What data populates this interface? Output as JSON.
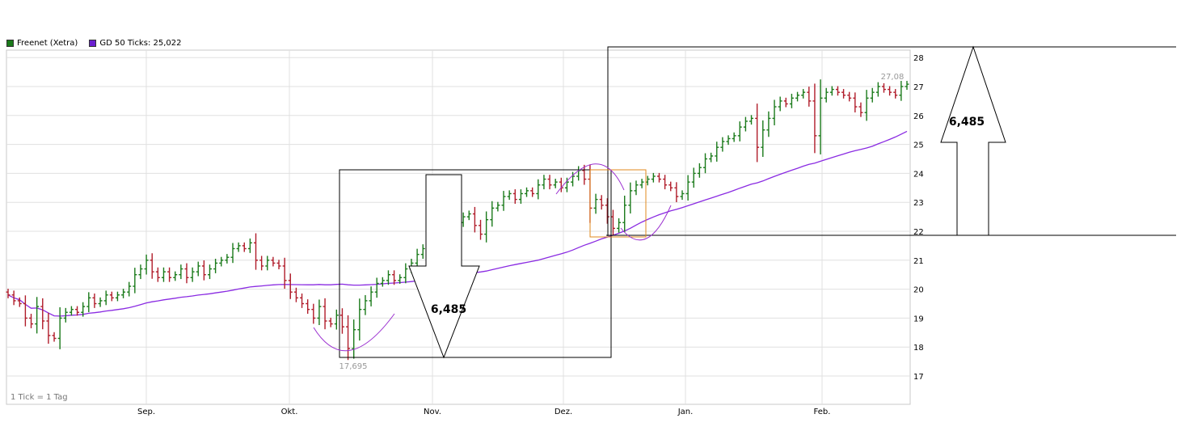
{
  "legend": {
    "series1": "Freenet (Xetra)",
    "series2": "GD 50 Ticks: 25,022"
  },
  "footnote": "1 Tick = 1 Tag",
  "annotations": {
    "low_label": "17,695",
    "high_label": "27,08",
    "down_arrow_label": "6,485",
    "up_arrow_label": "6,485"
  },
  "colors": {
    "up_bar": "#1a7a1a",
    "down_bar": "#b01c2a",
    "moving_average": "#8a2be2",
    "grid": "#e0e0e0",
    "annotation_box": "#000000",
    "highlight_box": "#e08a1e",
    "curve": "#9b30d0"
  },
  "chart_data": {
    "type": "ohlc",
    "title": "",
    "x_tick_labels": [
      "Sep.",
      "Okt.",
      "Nov.",
      "Dez.",
      "Jan.",
      "Feb."
    ],
    "y_tick_labels": [
      "17",
      "18",
      "19",
      "20",
      "21",
      "22",
      "23",
      "24",
      "25",
      "26",
      "27",
      "28"
    ],
    "ylim": [
      16,
      29
    ],
    "grid": true,
    "legend_position": "top-left",
    "series": [
      {
        "name": "Freenet (Xetra)",
        "kind": "ohlc"
      },
      {
        "name": "GD 50 Ticks: 25,022",
        "kind": "line"
      }
    ],
    "closes": [
      19.8,
      19.6,
      19.5,
      19.0,
      18.8,
      19.4,
      18.9,
      18.4,
      18.3,
      19.0,
      19.2,
      19.3,
      19.2,
      19.4,
      19.7,
      19.5,
      19.6,
      19.8,
      19.7,
      19.8,
      19.9,
      20.1,
      20.5,
      20.7,
      21.0,
      20.6,
      20.4,
      20.6,
      20.4,
      20.5,
      20.7,
      20.4,
      20.6,
      20.8,
      20.5,
      20.7,
      20.9,
      21.0,
      21.1,
      21.4,
      21.5,
      21.4,
      21.6,
      21.0,
      20.8,
      21.0,
      20.9,
      20.8,
      20.3,
      19.9,
      19.7,
      19.5,
      19.3,
      19.0,
      19.4,
      18.9,
      18.8,
      19.1,
      18.7,
      17.95,
      18.6,
      19.3,
      19.6,
      19.9,
      20.2,
      20.3,
      20.5,
      20.3,
      20.4,
      20.7,
      20.9,
      21.2,
      21.4,
      21.6,
      21.8,
      22.0,
      21.7,
      21.9,
      22.3,
      22.5,
      22.6,
      22.2,
      21.9,
      22.4,
      22.8,
      22.9,
      23.2,
      23.3,
      23.1,
      23.3,
      23.4,
      23.3,
      23.6,
      23.8,
      23.6,
      23.7,
      23.5,
      23.7,
      23.9,
      24.1,
      23.8,
      22.8,
      23.1,
      22.9,
      22.5,
      22.1,
      22.3,
      22.9,
      23.4,
      23.6,
      23.7,
      23.8,
      23.9,
      23.8,
      23.6,
      23.5,
      23.2,
      23.3,
      23.7,
      24.0,
      24.2,
      24.5,
      24.6,
      24.9,
      25.1,
      25.2,
      25.3,
      25.6,
      25.8,
      25.9,
      24.9,
      25.5,
      25.9,
      26.3,
      26.5,
      26.4,
      26.6,
      26.7,
      26.8,
      26.5,
      25.3,
      26.6,
      26.8,
      26.9,
      26.8,
      26.7,
      26.6,
      26.3,
      26.1,
      26.6,
      26.8,
      27.0,
      26.9,
      26.8,
      26.7,
      27.0,
      27.08
    ]
  }
}
